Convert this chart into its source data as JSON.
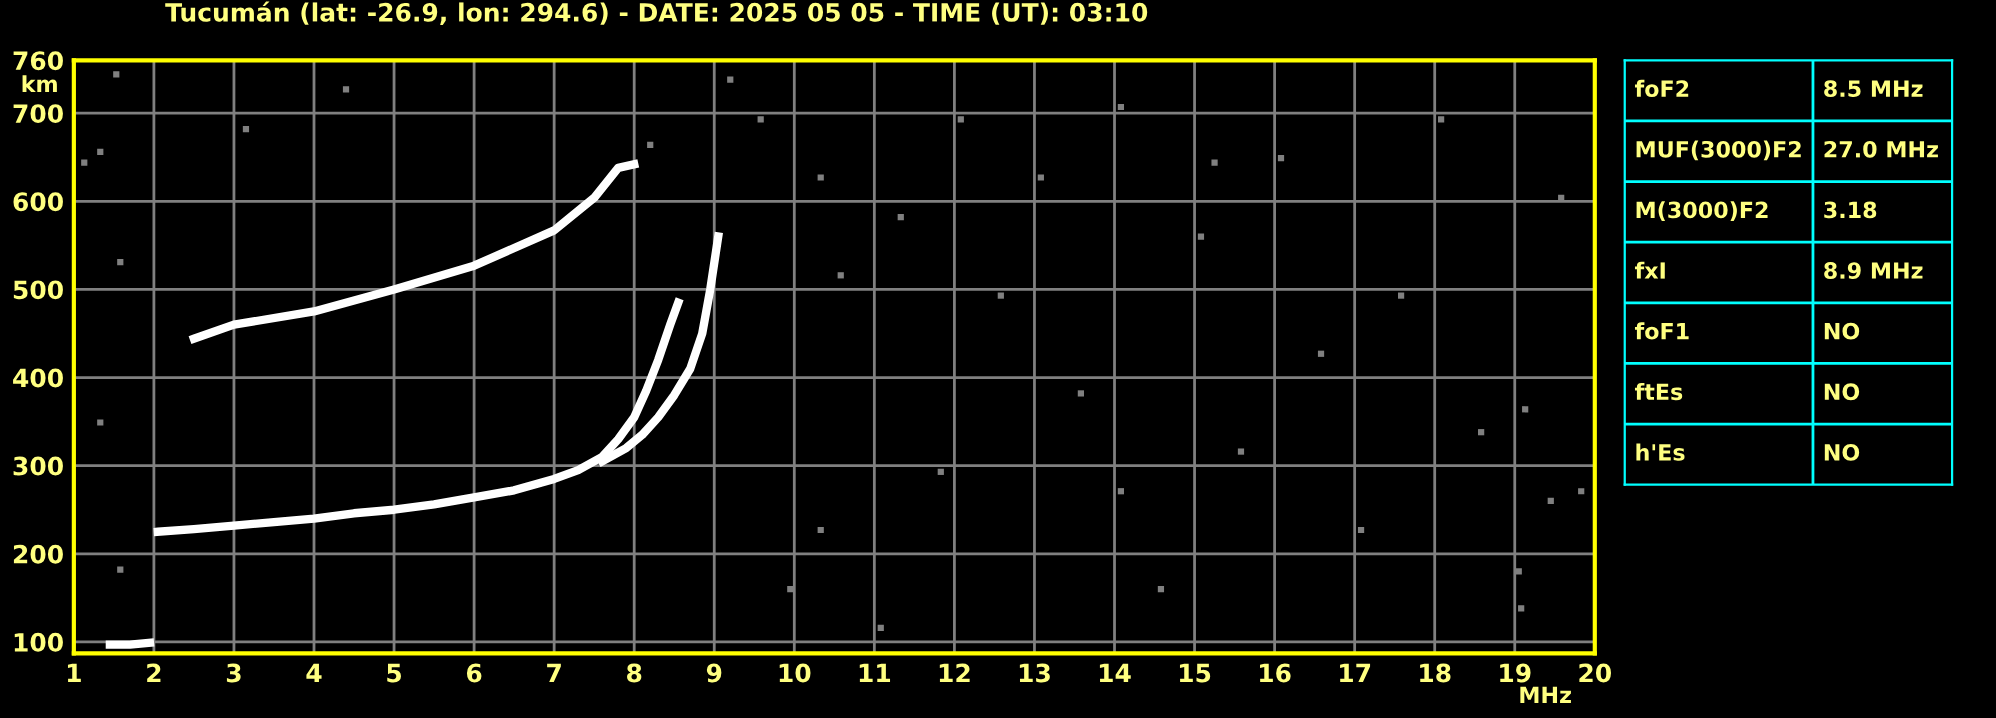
{
  "chart_data": [
    {
      "type": "line",
      "title": "Tucumán (lat: -26.9, lon: 294.6) - DATE: 2025 05 05 - TIME (UT): 03:10",
      "xlabel": "MHz",
      "ylabel": "km",
      "xlim": [
        1,
        20
      ],
      "ylim": [
        87,
        760
      ],
      "xticks": [
        1,
        2,
        3,
        4,
        5,
        6,
        7,
        8,
        9,
        10,
        11,
        12,
        13,
        14,
        15,
        16,
        17,
        18,
        19,
        20
      ],
      "yticks": [
        100,
        200,
        300,
        400,
        500,
        600,
        700,
        760
      ],
      "grid": true,
      "line_style": "solid",
      "marker": "none",
      "series": [
        {
          "color": "#ffffff",
          "x": [
            2.05,
            2.5,
            3,
            3.5,
            4,
            4.5,
            5,
            5.5,
            6,
            6.5,
            7,
            7.3,
            7.6,
            7.8,
            8.0,
            8.15,
            8.3,
            8.45,
            8.55
          ],
          "values": [
            225,
            228,
            232,
            236,
            240,
            246,
            250,
            256,
            264,
            272,
            285,
            295,
            310,
            330,
            355,
            385,
            420,
            460,
            485
          ]
        },
        {
          "color": "#ffffff",
          "x": [
            7.6,
            7.9,
            8.1,
            8.3,
            8.5,
            8.7,
            8.85,
            8.95,
            9.05
          ],
          "values": [
            305,
            320,
            335,
            355,
            380,
            410,
            450,
            500,
            560
          ]
        },
        {
          "color": "#ffffff",
          "x": [
            2.5,
            3,
            4,
            5,
            6,
            7,
            7.5,
            7.8,
            8.0
          ],
          "values": [
            444,
            460,
            475,
            500,
            527,
            567,
            604,
            638,
            642
          ]
        },
        {
          "color": "#ffffff",
          "x": [
            1.45,
            1.7,
            1.95
          ],
          "values": [
            97,
            97,
            99
          ]
        },
        {
          "type": "scatter",
          "marker": "square",
          "color": "#808080",
          "x": [
            1.53,
            1.13,
            1.33,
            1.58,
            3.15,
            4.4,
            1.33,
            1.58,
            8.2,
            9.2,
            9.58,
            10.33,
            10.58,
            11.33,
            12.08,
            12.58,
            13.08,
            13.58,
            14.08,
            14.58,
            15.08,
            15.58,
            16.08,
            16.58,
            17.08,
            17.58,
            18.08,
            18.58,
            19.08,
            19.58,
            19.83,
            14.08,
            15.25,
            19.13,
            19.45,
            19.05,
            9.95,
            10.33,
            11.08,
            11.83
          ],
          "values": [
            744,
            644,
            349,
            531,
            682,
            727,
            656,
            182,
            664,
            738,
            693,
            627,
            516,
            582,
            693,
            493,
            627,
            382,
            271,
            160,
            560,
            316,
            649,
            427,
            227,
            493,
            693,
            338,
            138,
            604,
            271,
            707,
            644,
            364,
            260,
            180,
            160,
            227,
            116,
            293
          ]
        }
      ]
    },
    {
      "type": "other",
      "annotations": [
        "foF2",
        "8.5 MHz",
        "MUF(3000)F2",
        "27.0 MHz",
        "M(3000)F2",
        "3.18",
        "fxI",
        "8.9 MHz",
        "foF1",
        "NO",
        "ftEs",
        "NO",
        "h'Es",
        "NO"
      ]
    }
  ]
}
